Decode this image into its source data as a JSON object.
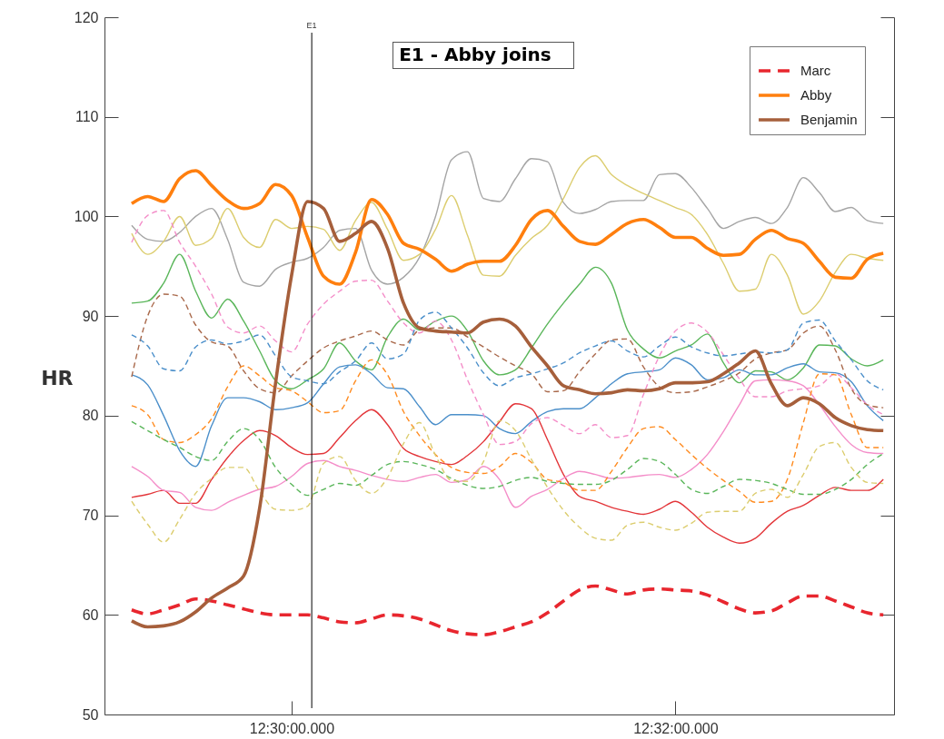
{
  "chart_data": {
    "type": "line",
    "title": "E1 - Abby joins",
    "ylabel": "HR",
    "legend": "top right",
    "annotations": [
      "E1"
    ],
    "categories": [
      null,
      null,
      null,
      null,
      null,
      null,
      null,
      null,
      null,
      null,
      "12:30:00.000",
      null,
      null,
      null,
      null,
      null,
      null,
      null,
      null,
      null,
      null,
      null,
      null,
      null,
      null,
      null,
      null,
      null,
      null,
      null,
      null,
      null,
      null,
      null,
      "12:32:00.000",
      null,
      null,
      null,
      null,
      null,
      null,
      null,
      null,
      null,
      null,
      null,
      null,
      null
    ],
    "ylim": [
      50,
      120
    ],
    "yticks": [
      50,
      60,
      70,
      80,
      90,
      100,
      110,
      120
    ],
    "series": [
      {
        "color": "#a5a5a5",
        "line_style": "solid",
        "values": [
          99.1,
          97.7,
          97.5,
          98.4,
          100.0,
          100.8,
          97.7,
          93.4,
          93.0,
          94.7,
          95.4,
          95.8,
          96.9,
          98.6,
          98.8,
          94.6,
          93.2,
          93.9,
          95.9,
          100.0,
          105.7,
          106.5,
          101.8,
          101.5,
          103.8,
          105.8,
          105.5,
          101.4,
          100.3,
          100.7,
          101.5,
          101.6,
          101.6,
          104.2,
          104.3,
          102.9,
          100.8,
          98.8,
          99.5,
          99.9,
          99.3,
          100.9,
          103.9,
          102.4,
          100.5,
          100.9,
          99.6,
          99.3
        ]
      },
      {
        "color": "#dccd6f",
        "line_style": "solid",
        "values": [
          98.3,
          96.2,
          97.5,
          100.0,
          97.1,
          97.8,
          100.8,
          97.9,
          96.9,
          99.7,
          98.8,
          99.0,
          98.7,
          96.6,
          99.6,
          101.4,
          98.7,
          95.6,
          96.2,
          98.7,
          102.1,
          98.1,
          94.1,
          94.0,
          96.1,
          97.8,
          99.1,
          101.8,
          104.9,
          106.1,
          104.2,
          103.1,
          102.3,
          101.6,
          100.9,
          100.2,
          98.2,
          95.3,
          92.5,
          92.7,
          96.2,
          94.1,
          90.2,
          91.5,
          94.4,
          96.2,
          95.8,
          95.6
        ]
      },
      {
        "color": "#5ab65a",
        "line_style": "solid",
        "values": [
          91.3,
          91.5,
          93.3,
          96.2,
          92.5,
          89.8,
          91.7,
          89.5,
          86.5,
          83.5,
          82.7,
          83.6,
          84.7,
          87.3,
          85.5,
          84.6,
          87.9,
          89.7,
          88.6,
          89.5,
          90.0,
          88.5,
          85.5,
          84.1,
          84.6,
          86.8,
          89.2,
          91.3,
          93.2,
          94.9,
          93.3,
          88.6,
          86.7,
          85.8,
          86.5,
          87.1,
          88.2,
          85.3,
          83.3,
          84.5,
          84.4,
          83.6,
          84.8,
          87.1,
          87.0,
          85.7,
          85.0,
          85.6
        ]
      },
      {
        "color": "#4b8fca",
        "line_style": "solid",
        "values": [
          84.1,
          83.1,
          80.0,
          76.5,
          74.9,
          79.0,
          81.8,
          81.8,
          81.4,
          80.6,
          80.8,
          81.3,
          83.2,
          84.9,
          85.1,
          84.2,
          82.8,
          82.7,
          80.9,
          79.1,
          80.1,
          80.1,
          80.0,
          78.7,
          78.2,
          79.4,
          80.4,
          80.7,
          80.7,
          81.8,
          83.2,
          84.2,
          84.4,
          84.6,
          85.8,
          85.1,
          83.6,
          83.8,
          84.6,
          84.1,
          84.1,
          84.8,
          85.2,
          84.4,
          84.3,
          83.4,
          81.0,
          79.5
        ]
      },
      {
        "color": "#e3363a",
        "line_style": "solid",
        "values": [
          71.8,
          72.1,
          72.5,
          71.2,
          71.2,
          73.6,
          75.8,
          77.5,
          78.5,
          78.0,
          76.8,
          76.1,
          76.2,
          77.8,
          79.5,
          80.6,
          79.1,
          76.7,
          75.9,
          75.4,
          75.1,
          76.0,
          77.4,
          79.4,
          81.2,
          80.7,
          77.6,
          74.1,
          71.9,
          71.4,
          70.8,
          70.4,
          70.1,
          70.6,
          71.4,
          70.3,
          68.8,
          67.8,
          67.2,
          67.7,
          69.2,
          70.4,
          71.0,
          72.0,
          72.8,
          72.5,
          72.5,
          73.6
        ]
      },
      {
        "color": "#f48ec9",
        "line_style": "solid",
        "values": [
          74.9,
          73.9,
          72.5,
          72.3,
          70.8,
          70.5,
          71.3,
          72.0,
          72.6,
          72.9,
          73.9,
          75.2,
          75.5,
          74.9,
          74.5,
          74.0,
          73.6,
          73.4,
          73.8,
          74.1,
          73.3,
          73.6,
          74.9,
          73.6,
          70.8,
          71.9,
          72.6,
          73.7,
          74.4,
          74.1,
          73.7,
          73.8,
          74.0,
          74.1,
          73.8,
          74.6,
          76.1,
          78.4,
          81.1,
          83.5,
          83.6,
          83.5,
          83.0,
          81.1,
          78.9,
          77.1,
          76.3,
          76.2
        ]
      },
      {
        "color": "#f48ec9",
        "line_style": "dashed",
        "values": [
          97.4,
          100.1,
          100.6,
          97.4,
          95.0,
          92.2,
          88.9,
          88.3,
          89.0,
          87.5,
          86.4,
          89.2,
          91.2,
          92.5,
          93.5,
          93.6,
          91.5,
          89.3,
          88.3,
          89.5,
          87.6,
          83.6,
          80.1,
          77.1,
          77.4,
          79.2,
          79.8,
          79.0,
          78.2,
          79.1,
          77.8,
          78.0,
          82.1,
          86.0,
          88.5,
          89.3,
          88.4,
          86.1,
          83.7,
          81.9,
          81.9,
          82.5,
          82.7,
          83.0,
          84.2,
          82.8,
          81.1,
          80.1
        ]
      },
      {
        "color": "#a9694b",
        "line_style": "dashed",
        "values": [
          83.9,
          90.0,
          92.2,
          92.0,
          89.1,
          87.4,
          87.0,
          84.5,
          82.7,
          82.3,
          84.0,
          85.5,
          86.8,
          87.5,
          88.0,
          88.5,
          87.6,
          87.1,
          88.6,
          88.8,
          88.8,
          87.9,
          86.9,
          85.9,
          85.0,
          84.2,
          82.4,
          82.5,
          84.4,
          86.2,
          87.6,
          87.7,
          84.9,
          82.9,
          82.3,
          82.4,
          82.9,
          83.5,
          84.3,
          85.7,
          86.3,
          86.6,
          88.3,
          89.0,
          86.6,
          82.7,
          81.1,
          80.8
        ]
      },
      {
        "color": "#4b8fca",
        "line_style": "dashed",
        "values": [
          88.1,
          87.0,
          84.7,
          84.5,
          86.9,
          87.6,
          87.2,
          87.5,
          88.1,
          86.0,
          83.9,
          83.5,
          83.2,
          84.4,
          85.5,
          87.3,
          85.7,
          86.2,
          89.6,
          90.4,
          88.8,
          86.8,
          84.3,
          83.0,
          83.8,
          84.2,
          84.7,
          85.3,
          86.3,
          87.0,
          87.5,
          86.5,
          85.9,
          87.0,
          87.9,
          86.9,
          86.3,
          86.0,
          86.2,
          86.4,
          86.3,
          86.6,
          89.3,
          89.6,
          87.5,
          85.6,
          83.5,
          82.6
        ]
      },
      {
        "color": "#ff8b1f",
        "line_style": "dashed",
        "values": [
          81.0,
          80.1,
          77.6,
          77.3,
          78.1,
          79.7,
          82.9,
          85.0,
          84.0,
          82.8,
          82.5,
          81.4,
          80.3,
          80.5,
          83.5,
          85.6,
          84.1,
          80.4,
          78.0,
          76.1,
          74.8,
          74.3,
          74.2,
          74.9,
          76.2,
          75.3,
          73.6,
          73.3,
          72.5,
          72.5,
          74.4,
          76.8,
          78.7,
          78.9,
          77.6,
          76.1,
          74.7,
          73.5,
          72.4,
          71.3,
          71.4,
          73.6,
          79.3,
          84.2,
          84.1,
          80.1,
          76.8,
          76.8
        ]
      },
      {
        "color": "#5ab65a",
        "line_style": "dashed",
        "values": [
          79.4,
          78.5,
          77.6,
          76.8,
          75.9,
          75.5,
          77.4,
          78.7,
          77.6,
          74.8,
          73.1,
          72.0,
          72.6,
          73.2,
          73.0,
          74.0,
          75.1,
          75.4,
          75.1,
          74.6,
          73.7,
          73.0,
          72.7,
          72.9,
          73.5,
          73.8,
          73.4,
          73.2,
          73.1,
          73.1,
          73.5,
          74.6,
          75.7,
          75.4,
          74.1,
          72.6,
          72.2,
          72.9,
          73.6,
          73.5,
          73.2,
          72.6,
          72.1,
          72.1,
          72.6,
          73.6,
          75.1,
          76.2
        ]
      },
      {
        "color": "#dccd6f",
        "line_style": "dashed",
        "values": [
          71.4,
          69.1,
          67.3,
          69.6,
          72.2,
          73.7,
          74.8,
          74.8,
          72.4,
          70.6,
          70.5,
          70.9,
          75.2,
          75.9,
          73.5,
          72.2,
          73.8,
          77.2,
          79.3,
          76.0,
          73.5,
          73.4,
          75.4,
          79.5,
          78.5,
          75.6,
          72.8,
          70.5,
          68.8,
          67.7,
          67.5,
          69.0,
          69.3,
          68.8,
          68.5,
          69.2,
          70.3,
          70.4,
          70.4,
          72.2,
          72.6,
          71.8,
          74.1,
          76.9,
          77.3,
          74.8,
          73.3,
          73.2
        ]
      },
      {
        "name": "Marc",
        "color": "#e8262e",
        "line_style": "dashed",
        "values": [
          60.5,
          60.1,
          60.5,
          61.0,
          61.6,
          61.4,
          61.0,
          60.6,
          60.2,
          60.0,
          60.0,
          60.0,
          59.7,
          59.3,
          59.2,
          59.6,
          60.0,
          59.9,
          59.6,
          59.0,
          58.4,
          58.1,
          58.0,
          58.3,
          58.8,
          59.3,
          60.2,
          61.4,
          62.5,
          62.9,
          62.5,
          62.1,
          62.5,
          62.6,
          62.5,
          62.4,
          62.0,
          61.3,
          60.6,
          60.2,
          60.4,
          61.2,
          61.9,
          61.9,
          61.4,
          60.8,
          60.2,
          60.0
        ]
      },
      {
        "name": "Abby",
        "color": "#ff7f0e",
        "line_style": "solid",
        "values": [
          101.3,
          102.0,
          101.5,
          103.8,
          104.6,
          103.1,
          101.6,
          100.8,
          101.3,
          103.2,
          102.1,
          97.9,
          94.0,
          93.2,
          96.4,
          101.7,
          100.2,
          97.3,
          96.7,
          95.7,
          94.5,
          95.2,
          95.5,
          95.5,
          97.1,
          99.7,
          100.6,
          99.0,
          97.5,
          97.2,
          98.2,
          99.3,
          99.7,
          98.9,
          97.9,
          97.9,
          96.8,
          96.1,
          96.2,
          97.7,
          98.6,
          97.8,
          97.3,
          95.5,
          93.9,
          93.8,
          95.7,
          96.3
        ]
      },
      {
        "name": "Benjamin",
        "color": "#a65f3b",
        "line_style": "solid",
        "values": [
          59.4,
          58.8,
          58.9,
          59.3,
          60.3,
          61.7,
          62.7,
          63.9,
          70.7,
          83.3,
          94.1,
          101.5,
          100.8,
          97.5,
          98.3,
          99.5,
          96.8,
          91.3,
          88.8,
          88.5,
          88.4,
          88.3,
          89.4,
          89.7,
          89.0,
          86.9,
          85.0,
          83.0,
          82.6,
          82.2,
          82.3,
          82.6,
          82.5,
          82.7,
          83.3,
          83.3,
          83.4,
          84.2,
          85.3,
          86.5,
          83.2,
          81.0,
          81.8,
          81.2,
          79.8,
          79.0,
          78.6,
          78.5
        ]
      }
    ]
  }
}
